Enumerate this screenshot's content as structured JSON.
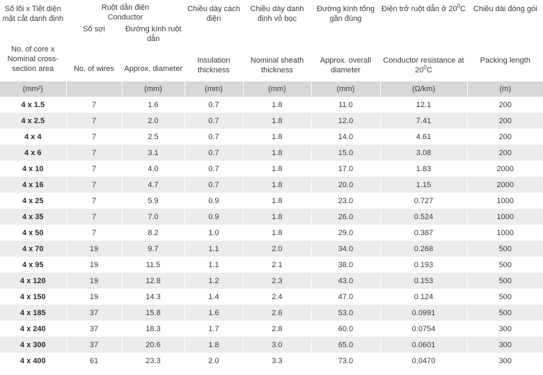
{
  "header": {
    "size": {
      "vi": "Số lõi x Tiết diện mặt cắt danh định",
      "en": "No. of core x Nominal cross-section area",
      "unit": "(mm²)"
    },
    "conductor_group": {
      "vi": "Ruột dẫn điện",
      "en": "Conductor"
    },
    "wires": {
      "vi": "Số sợi",
      "en": "No. of wires",
      "unit": ""
    },
    "diameter": {
      "vi": "Đường kính ruột dẫn",
      "en": "Approx. diameter",
      "unit": "(mm)"
    },
    "insulation": {
      "vi": "Chiều dày cách điện",
      "en": "Insulation thickness",
      "unit": "(mm)"
    },
    "sheath": {
      "vi": "Chiều dày danh định vỏ bọc",
      "en": "Nominal sheath thickness",
      "unit": "(mm)"
    },
    "overall": {
      "vi": "Đường kính tổng gần đúng",
      "en": "Approx. overall diameter",
      "unit": "(mm)"
    },
    "resistance": {
      "vi_prefix": "Điện trở ruột dẫn ở 20",
      "vi_suffix": "C",
      "en_prefix": "Conductor resistance at 20",
      "en_suffix": "C",
      "degree": "0",
      "unit": "(Ω/km)"
    },
    "packing": {
      "vi": "Chiều dài đóng gói",
      "en": "Packing length",
      "unit": "(m)"
    }
  },
  "rows": [
    [
      "4 x 1.5",
      "7",
      "1.6",
      "0.7",
      "1.8",
      "11.0",
      "12.1",
      "200"
    ],
    [
      "4 x 2.5",
      "7",
      "2.0",
      "0.7",
      "1.8",
      "12.0",
      "7.41",
      "200"
    ],
    [
      "4 x 4",
      "7",
      "2.5",
      "0.7",
      "1.8",
      "14.0",
      "4.61",
      "200"
    ],
    [
      "4 x 6",
      "7",
      "3.1",
      "0.7",
      "1.8",
      "15.0",
      "3.08",
      "200"
    ],
    [
      "4 x 10",
      "7",
      "4.0",
      "0.7",
      "1.8",
      "17.0",
      "1.83",
      "2000"
    ],
    [
      "4 x 16",
      "7",
      "4.7",
      "0.7",
      "1.8",
      "20.0",
      "1.15",
      "2000"
    ],
    [
      "4 x 25",
      "7",
      "5.9",
      "0.9",
      "1.8",
      "23.0",
      "0.727",
      "1000"
    ],
    [
      "4 x 35",
      "7",
      "7.0",
      "0.9",
      "1.8",
      "26.0",
      "0.524",
      "1000"
    ],
    [
      "4 x 50",
      "7",
      "8.2",
      "1.0",
      "1.8",
      "29.0",
      "0.387",
      "1000"
    ],
    [
      "4 x 70",
      "19",
      "9.7",
      "1.1",
      "2.0",
      "34.0",
      "0.268",
      "500"
    ],
    [
      "4 x 95",
      "19",
      "11.5",
      "1.1",
      "2.1",
      "38.0",
      "0.193",
      "500"
    ],
    [
      "4 x 120",
      "19",
      "12.8",
      "1.2",
      "2.3",
      "43.0",
      "0.153",
      "500"
    ],
    [
      "4 x 150",
      "19",
      "14.3",
      "1.4",
      "2.4",
      "47.0",
      "0.124",
      "500"
    ],
    [
      "4 x 185",
      "37",
      "15.8",
      "1.6",
      "2.6",
      "53.0",
      "0.0991",
      "500"
    ],
    [
      "4 x 240",
      "37",
      "18.3",
      "1.7",
      "2.8",
      "60.0",
      "0.0754",
      "300"
    ],
    [
      "4 x 300",
      "37",
      "20.6",
      "1.8",
      "3.0",
      "65.0",
      "0.0601",
      "300"
    ],
    [
      "4 x 400",
      "61",
      "23.3",
      "2.0",
      "3.3",
      "73.0",
      "0.0470",
      "300"
    ]
  ],
  "colors": {
    "unit_row_bg": "#d8d8d8",
    "stripe_bg": "#ececec",
    "text": "#3a3a3a"
  }
}
